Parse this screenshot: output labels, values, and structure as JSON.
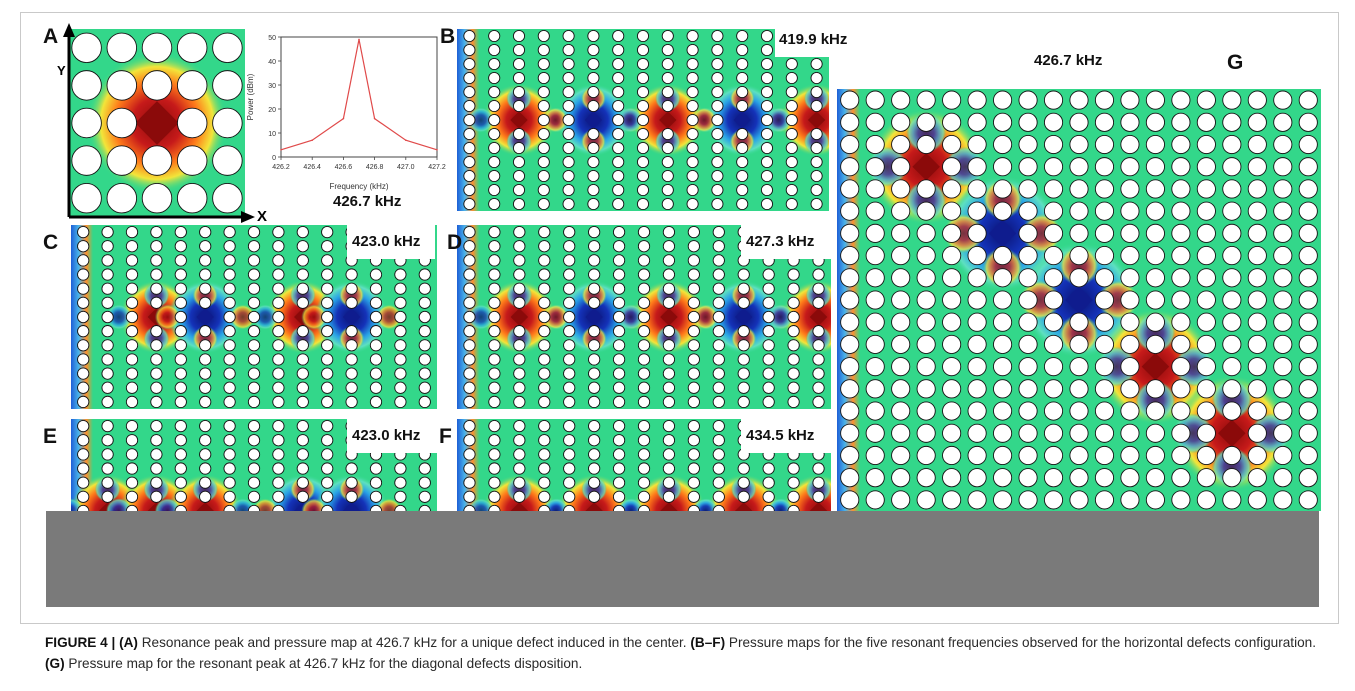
{
  "figure": {
    "panels": [
      {
        "id": "A",
        "label": "A",
        "frequency": "426.7 kHz",
        "grid": [
          5,
          5
        ],
        "defects": [
          [
            2,
            2,
            "red"
          ]
        ]
      },
      {
        "id": "B",
        "label": "B",
        "frequency": "419.9 kHz",
        "grid": [
          15,
          13
        ],
        "defects": [
          [
            2,
            6,
            "red"
          ],
          [
            5,
            6,
            "blue"
          ],
          [
            8,
            6,
            "red"
          ],
          [
            11,
            6,
            "blue"
          ],
          [
            14,
            6,
            "red"
          ]
        ]
      },
      {
        "id": "C",
        "label": "C",
        "frequency": "423.0 kHz",
        "grid": [
          15,
          13
        ],
        "defects": [
          [
            3,
            6,
            "red"
          ],
          [
            5,
            6,
            "blue"
          ],
          [
            9,
            6,
            "red"
          ],
          [
            11,
            6,
            "blue"
          ]
        ]
      },
      {
        "id": "D",
        "label": "D",
        "frequency": "427.3 kHz",
        "grid": [
          15,
          13
        ],
        "defects": [
          [
            2,
            6,
            "red"
          ],
          [
            5,
            6,
            "blue"
          ],
          [
            8,
            6,
            "red"
          ],
          [
            11,
            6,
            "blue"
          ],
          [
            14,
            6,
            "red"
          ]
        ]
      },
      {
        "id": "E",
        "label": "E",
        "frequency": "423.0 kHz",
        "grid": [
          15,
          13
        ],
        "defects": [
          [
            1,
            6,
            "red"
          ],
          [
            3,
            6,
            "red"
          ],
          [
            5,
            6,
            "red"
          ],
          [
            9,
            6,
            "blue"
          ],
          [
            11,
            6,
            "blue"
          ]
        ]
      },
      {
        "id": "F",
        "label": "F",
        "frequency": "434.5 kHz",
        "grid": [
          15,
          13
        ],
        "defects": [
          [
            2,
            6,
            "red"
          ],
          [
            5,
            6,
            "red"
          ],
          [
            8,
            6,
            "red"
          ],
          [
            11,
            6,
            "red"
          ],
          [
            14,
            6,
            "red"
          ]
        ]
      },
      {
        "id": "G",
        "label": "G",
        "frequency": "426.7 kHz",
        "grid": [
          19,
          19
        ],
        "defects": [
          [
            3,
            3,
            "red"
          ],
          [
            6,
            6,
            "blue"
          ],
          [
            9,
            9,
            "blue"
          ],
          [
            12,
            12,
            "red"
          ],
          [
            15,
            15,
            "red"
          ]
        ]
      }
    ],
    "axis_labels": {
      "x": "X",
      "y": "Y"
    },
    "colors": {
      "field": "#33d78a",
      "red": "#8b0a0a",
      "blue": "#0f1c8e",
      "hole": "#ffffff",
      "outline": "#141414",
      "gray": "#7a7a7a"
    }
  },
  "chart_data": {
    "type": "line",
    "x": [
      426.2,
      426.4,
      426.6,
      426.7,
      426.8,
      427.0,
      427.2
    ],
    "series": [
      {
        "values": [
          3,
          7,
          16,
          49,
          16,
          7,
          3
        ],
        "color": "#e04a4a"
      }
    ],
    "xlabel": "Frequency (kHz)",
    "ylabel": "Power (dBm)",
    "xlim": [
      426.2,
      427.2
    ],
    "ylim": [
      0,
      50
    ],
    "xticks": [
      "426.2",
      "426.4",
      "426.6",
      "426.8",
      "427.0",
      "427.2"
    ],
    "yticks": [
      "0",
      "10",
      "20",
      "30",
      "40",
      "50"
    ]
  },
  "caption": {
    "label": "FIGURE 4 | ",
    "a_tag": "(A)",
    "a_text": " Resonance peak and pressure map at 426.7 kHz for a unique defect induced in the center. ",
    "bf_tag": "(B–F)",
    "bf_text": " Pressure maps for the five resonant frequencies observed for the horizontal defects configuration. ",
    "g_tag": "(G)",
    "g_text": " Pressure map for the resonant peak at 426.7 kHz for the diagonal defects disposition."
  }
}
